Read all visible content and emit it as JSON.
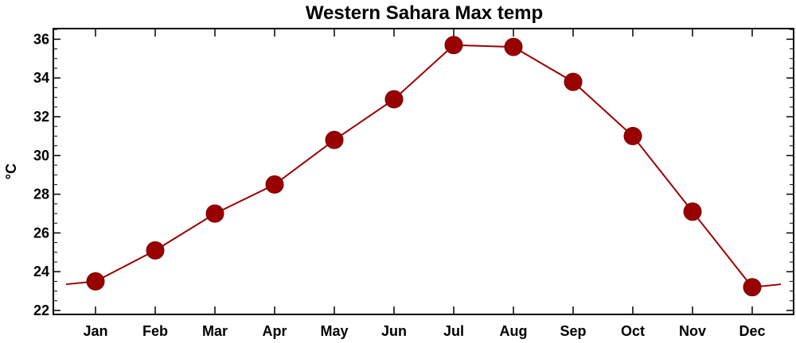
{
  "chart_data": {
    "type": "line",
    "title": "Western Sahara Max temp",
    "xlabel": "",
    "ylabel": "°C",
    "categories": [
      "Jan",
      "Feb",
      "Mar",
      "Apr",
      "May",
      "Jun",
      "Jul",
      "Aug",
      "Sep",
      "Oct",
      "Nov",
      "Dec"
    ],
    "series": [
      {
        "values": [
          23.5,
          25.1,
          27.0,
          28.5,
          30.8,
          32.9,
          35.7,
          35.6,
          33.8,
          31.0,
          27.1,
          23.2
        ],
        "color": "#990000"
      }
    ],
    "wrap_ends": [
      23.35,
      23.35
    ],
    "ylim": [
      22,
      37
    ],
    "yticks": [
      22,
      24,
      26,
      28,
      30,
      32,
      34,
      36
    ],
    "ytick_labels": [
      "22",
      "24",
      "26",
      "28",
      "30",
      "32",
      "34",
      "36"
    ],
    "grid": false,
    "legend": "none"
  }
}
